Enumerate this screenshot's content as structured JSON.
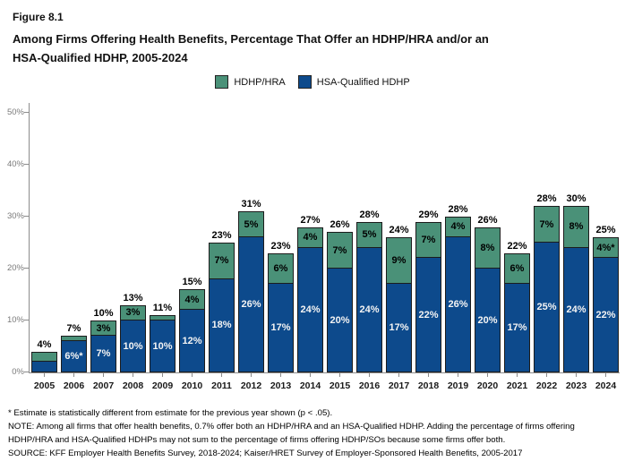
{
  "figure": {
    "number": "Figure 8.1",
    "title_line1": "Among Firms Offering Health Benefits, Percentage That Offer an HDHP/HRA and/or an",
    "title_line2": "HSA-Qualified HDHP, 2005-2024"
  },
  "legend": [
    {
      "label": "HDHP/HRA",
      "color": "#4a9178"
    },
    {
      "label": "HSA-Qualified HDHP",
      "color": "#0d4a8c"
    }
  ],
  "chart_data": {
    "type": "bar",
    "stacked": true,
    "title": "Among Firms Offering Health Benefits, Percentage That Offer an HDHP/HRA and/or an HSA-Qualified HDHP, 2005-2024",
    "categories": [
      "2005",
      "2006",
      "2007",
      "2008",
      "2009",
      "2010",
      "2011",
      "2012",
      "2013",
      "2014",
      "2015",
      "2016",
      "2017",
      "2018",
      "2019",
      "2020",
      "2021",
      "2022",
      "2023",
      "2024"
    ],
    "series": [
      {
        "name": "HSA-Qualified HDHP",
        "color": "#0d4a8c",
        "values": [
          2,
          6,
          7,
          10,
          10,
          12,
          18,
          26,
          17,
          24,
          20,
          24,
          17,
          22,
          26,
          20,
          17,
          25,
          24,
          22
        ],
        "labels": [
          "",
          "6%*",
          "7%",
          "10%",
          "10%",
          "12%",
          "18%",
          "26%",
          "17%",
          "24%",
          "20%",
          "24%",
          "17%",
          "22%",
          "26%",
          "20%",
          "17%",
          "25%",
          "24%",
          "22%"
        ]
      },
      {
        "name": "HDHP/HRA",
        "color": "#4a9178",
        "values": [
          2,
          1,
          3,
          3,
          1,
          4,
          7,
          5,
          6,
          4,
          7,
          5,
          9,
          7,
          4,
          8,
          6,
          7,
          8,
          4
        ],
        "labels": [
          "",
          "",
          "3%",
          "3%",
          "",
          "4%",
          "7%",
          "5%",
          "6%",
          "4%",
          "7%",
          "5%",
          "9%",
          "7%",
          "4%",
          "8%",
          "6%",
          "7%",
          "8%",
          "4%*"
        ]
      }
    ],
    "totals": [
      "4%",
      "7%",
      "10%",
      "13%",
      "11%",
      "15%",
      "23%",
      "31%",
      "23%",
      "27%",
      "26%",
      "28%",
      "24%",
      "29%",
      "28%",
      "26%",
      "22%",
      "28%",
      "30%",
      "25%"
    ],
    "xlabel": "",
    "ylabel": "",
    "y_ticks": [
      "0%",
      "10%",
      "20%",
      "30%",
      "40%",
      "50%"
    ],
    "y_tick_values": [
      0,
      10,
      20,
      30,
      40,
      50
    ],
    "ylim": [
      0,
      52
    ],
    "grid": false,
    "legend_position": "top-center"
  },
  "footnotes": {
    "line1": "* Estimate is statistically different from estimate for the previous year shown (p < .05).",
    "line2": "NOTE: Among all firms that offer health benefits, 0.7% offer both an HDHP/HRA and an HSA-Qualified HDHP. Adding the percentage of firms offering",
    "line3": "HDHP/HRA and HSA-Qualified HDHPs may not sum to the percentage of firms offering HDHP/SOs because some firms offer both.",
    "line4": "SOURCE: KFF Employer Health Benefits Survey, 2018-2024; Kaiser/HRET Survey of Employer-Sponsored Health Benefits, 2005-2017"
  }
}
